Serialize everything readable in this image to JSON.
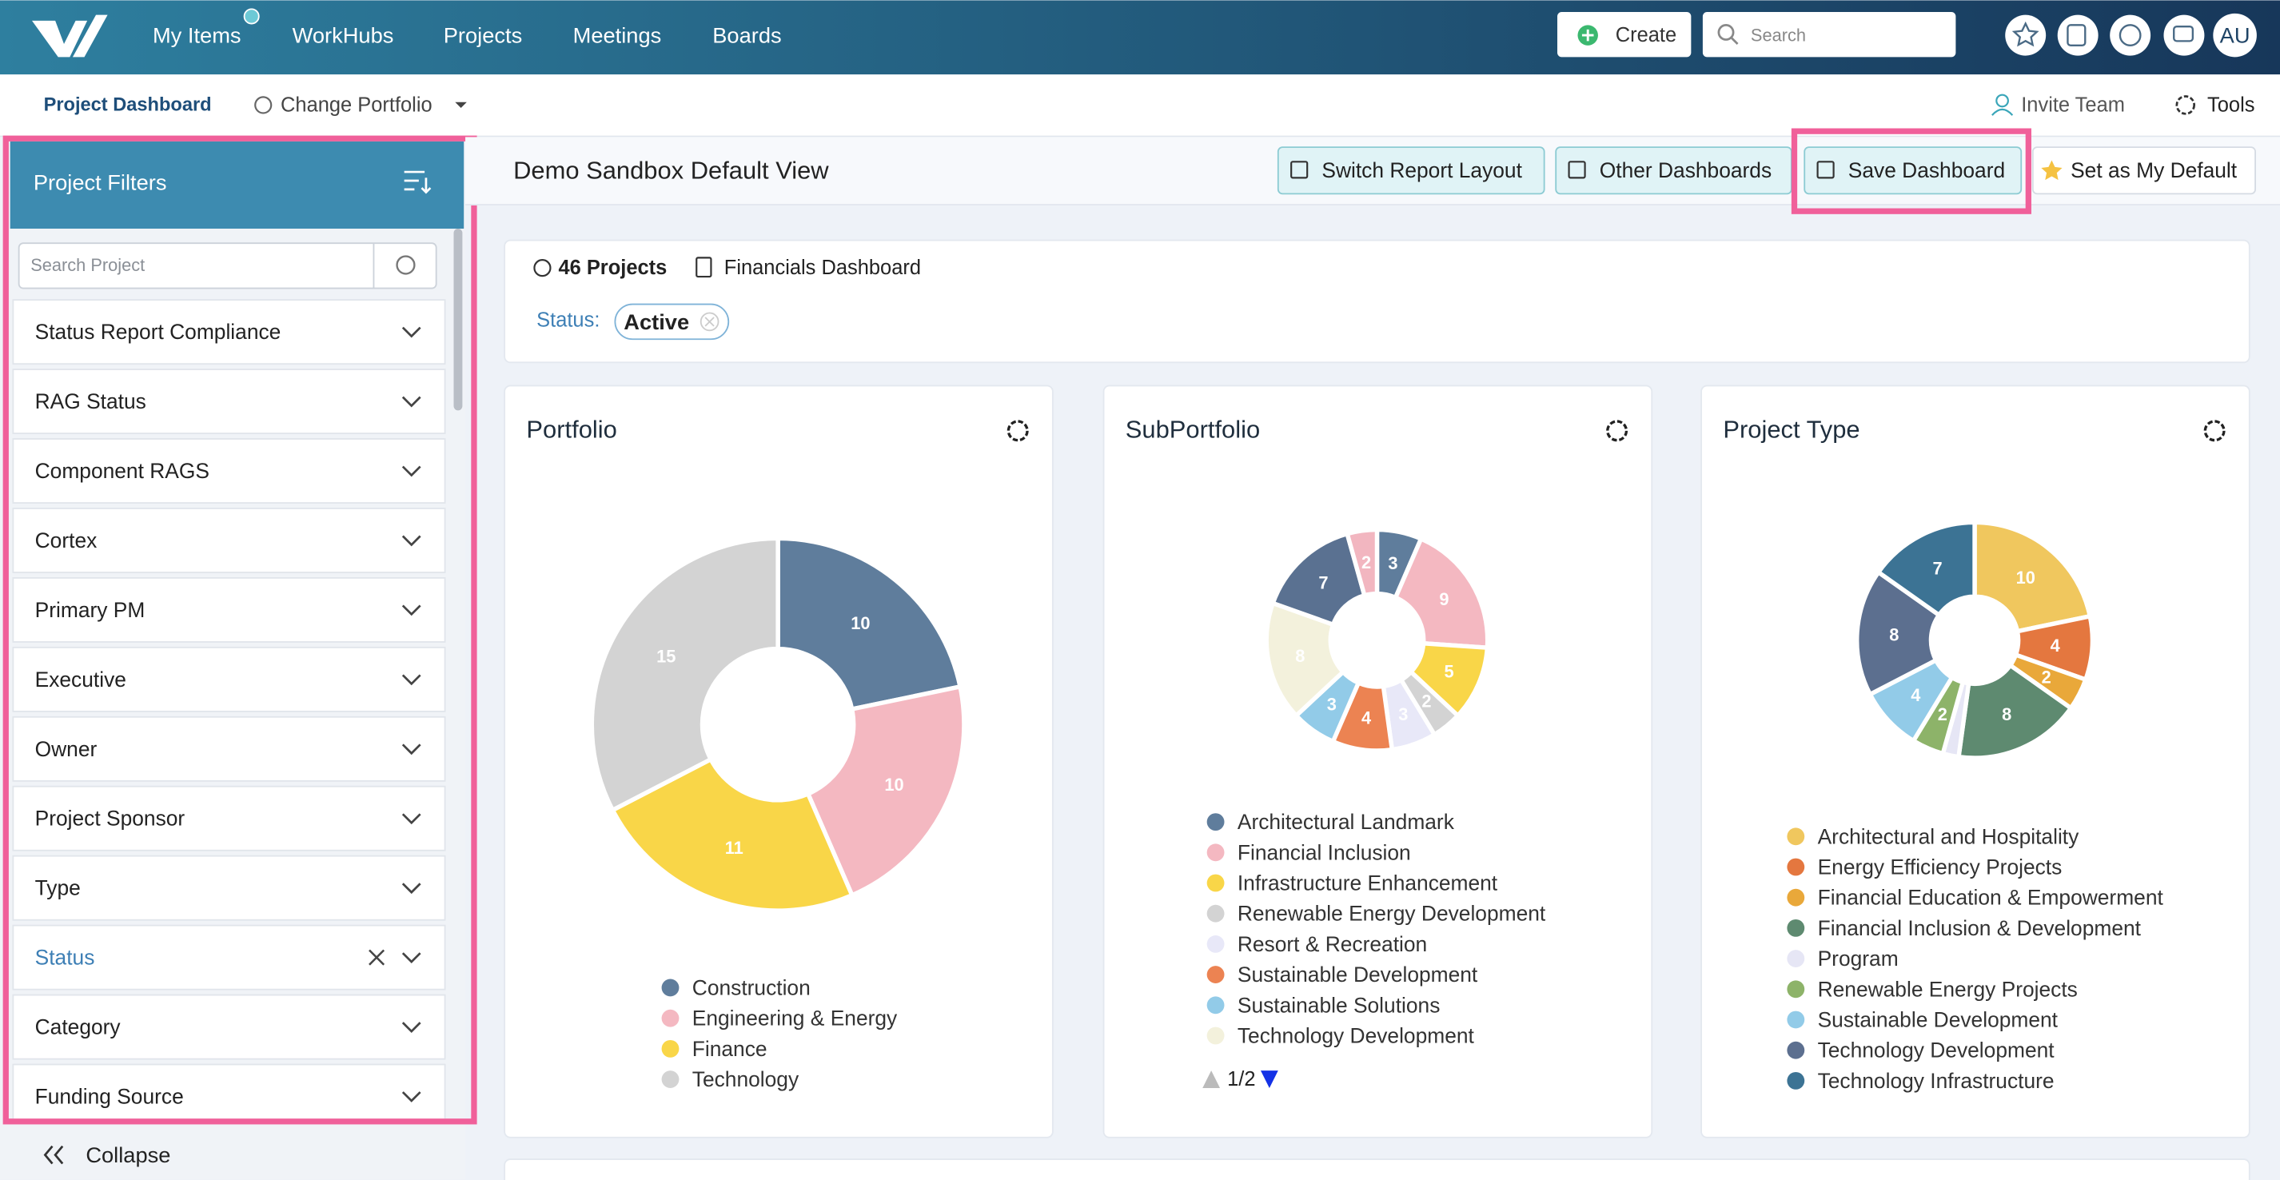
{
  "nav": {
    "items": [
      "My Items",
      "WorkHubs",
      "Projects",
      "Meetings",
      "Boards"
    ],
    "create": "Create",
    "search": "Search",
    "user": "AU"
  },
  "subnav": {
    "title": "Project Dashboard",
    "change_portfolio": "Change Portfolio",
    "invite": "Invite Team",
    "tools": "Tools"
  },
  "sidebar": {
    "title": "Project Filters",
    "search_placeholder": "Search Project",
    "filters": [
      {
        "label": "Status Report Compliance",
        "active": false
      },
      {
        "label": "RAG Status",
        "active": false
      },
      {
        "label": "Component RAGS",
        "active": false
      },
      {
        "label": "Cortex",
        "active": false
      },
      {
        "label": "Primary PM",
        "active": false
      },
      {
        "label": "Executive",
        "active": false
      },
      {
        "label": "Owner",
        "active": false
      },
      {
        "label": "Project Sponsor",
        "active": false
      },
      {
        "label": "Type",
        "active": false
      },
      {
        "label": "Status",
        "active": true
      },
      {
        "label": "Category",
        "active": false
      },
      {
        "label": "Funding Source",
        "active": false
      }
    ],
    "collapse": "Collapse"
  },
  "header": {
    "title": "Demo Sandbox Default View",
    "buttons": [
      "Switch Report Layout",
      "Other Dashboards",
      "Save Dashboard",
      "Set as My Default"
    ]
  },
  "summary": {
    "projects": "46 Projects",
    "dashboard": "Financials Dashboard",
    "status_label": "Status:",
    "status_value": "Active"
  },
  "chart_data": [
    {
      "type": "pie",
      "title": "Portfolio",
      "categories": [
        "Construction",
        "Engineering & Energy",
        "Finance",
        "Technology"
      ],
      "values": [
        10,
        10,
        11,
        15
      ],
      "colors": [
        "#5f7d9c",
        "#f4b8c1",
        "#f9d648",
        "#d3d3d3"
      ]
    },
    {
      "type": "pie",
      "title": "SubPortfolio",
      "categories": [
        "Architectural Landmark",
        "Financial Inclusion",
        "Infrastructure Enhancement",
        "Renewable Energy Development",
        "Resort & Recreation",
        "Sustainable Development",
        "Sustainable Solutions",
        "Technology Development",
        null,
        null
      ],
      "values": [
        3,
        9,
        5,
        2,
        3,
        4,
        3,
        8,
        7,
        2
      ],
      "colors": [
        "#5f7d9c",
        "#f4b8c1",
        "#f9d648",
        "#d3d3d3",
        "#e8e8f8",
        "#ec8352",
        "#92cbe8",
        "#f3f1dc",
        "#5a7191",
        "#f2b6c0"
      ],
      "legend_page": "1/2"
    },
    {
      "type": "pie",
      "title": "Project Type",
      "categories": [
        "Architectural and Hospitality",
        "Energy Efficiency Projects",
        "Financial Education & Empowerment",
        "Financial Inclusion & Development",
        "Program",
        "Renewable Energy Projects",
        "Sustainable Development",
        "Technology Development",
        "Technology Infrastructure"
      ],
      "values": [
        10,
        4,
        2,
        8,
        1,
        2,
        4,
        8,
        7
      ],
      "colors": [
        "#f0c75e",
        "#e4773f",
        "#e9a83a",
        "#5e8a70",
        "#e6e6f5",
        "#8db369",
        "#92cbe8",
        "#5c6f8f",
        "#3c7394"
      ]
    }
  ]
}
